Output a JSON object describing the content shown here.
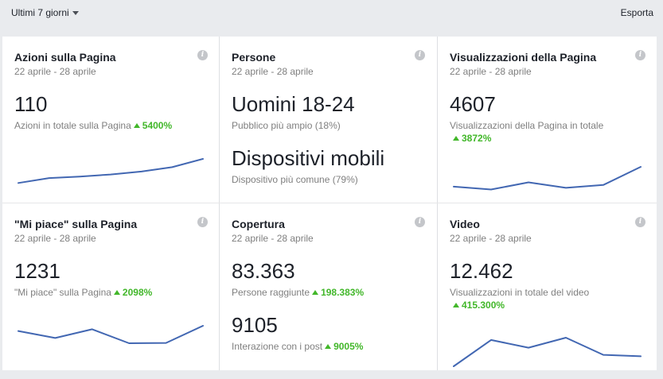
{
  "toolbar": {
    "range_label": "Ultimi 7 giorni",
    "export_label": "Esporta"
  },
  "cards": [
    {
      "title": "Azioni sulla Pagina",
      "date": "22 aprile - 28 aprile",
      "value": "110",
      "caption": "Azioni in totale sulla Pagina",
      "delta": "5400%",
      "trend": [
        0.18,
        0.35,
        0.4,
        0.47,
        0.57,
        0.72,
        1.0
      ]
    },
    {
      "title": "Persone",
      "date": "22 aprile - 28 aprile",
      "value": "Uomini 18-24",
      "caption": "Pubblico più ampio (18%)",
      "value2": "Dispositivi mobili",
      "caption2": "Dispositivo più comune (79%)"
    },
    {
      "title": "Visualizzazioni della Pagina",
      "date": "22 aprile - 28 aprile",
      "value": "4607",
      "caption": "Visualizzazioni della Pagina in totale",
      "delta": "3872%",
      "trend": [
        0.17,
        0.05,
        0.35,
        0.12,
        0.24,
        1.0
      ]
    },
    {
      "title": "\"Mi piace\" sulla Pagina",
      "date": "22 aprile - 28 aprile",
      "value": "1231",
      "caption": "\"Mi piace\" sulla Pagina",
      "delta": "2098%",
      "trend": [
        0.7,
        0.3,
        0.8,
        0.0,
        0.02,
        1.0
      ]
    },
    {
      "title": "Copertura",
      "date": "22 aprile - 28 aprile",
      "value": "83.363",
      "caption": "Persone raggiunte",
      "delta": "198.383%",
      "value2": "9105",
      "caption2": "Interazione con i post",
      "delta2": "9005%"
    },
    {
      "title": "Video",
      "date": "22 aprile - 28 aprile",
      "value": "12.462",
      "caption": "Visualizzazioni in totale del video",
      "delta": "415.300%",
      "trend": [
        0.0,
        0.92,
        0.65,
        1.0,
        0.4,
        0.35
      ]
    }
  ],
  "colors": {
    "accent": "#4267b2",
    "positive": "#42b72a",
    "muted": "#7f7f7f"
  },
  "icons": {
    "info": "info-icon",
    "dropdown": "chevron-down-icon",
    "delta": "arrow-up-icon"
  }
}
